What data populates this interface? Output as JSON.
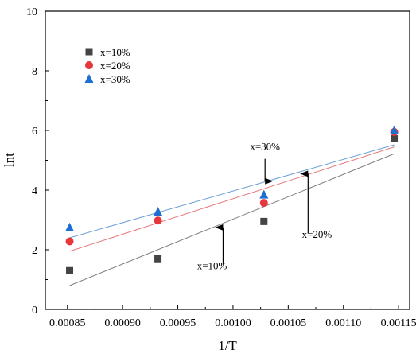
{
  "chart_data": {
    "type": "scatter",
    "xlabel": "1/T",
    "ylabel": "lnt",
    "xlim": [
      0.00083,
      0.00116
    ],
    "ylim": [
      0,
      10
    ],
    "xticks": [
      0.00085,
      0.0009,
      0.00095,
      0.001,
      0.00105,
      0.0011,
      0.00115
    ],
    "xtick_labels": [
      "0.00085",
      "0.00090",
      "0.00095",
      "0.00100",
      "0.00105",
      "0.00110",
      "0.00115"
    ],
    "yticks": [
      0,
      2,
      4,
      6,
      8,
      10
    ],
    "ytick_labels": [
      "0",
      "2",
      "4",
      "6",
      "8",
      "10"
    ],
    "grid": false,
    "legend_position": "top-left",
    "series": [
      {
        "name": "x=10%",
        "marker": "square",
        "color": "#444444",
        "line_color": "#7f7f7f",
        "x": [
          0.000852,
          0.000932,
          0.001028,
          0.001146
        ],
        "y": [
          1.3,
          1.7,
          2.95,
          5.72
        ],
        "fit": [
          [
            0.000852,
            0.8
          ],
          [
            0.001146,
            5.22
          ]
        ]
      },
      {
        "name": "x=20%",
        "marker": "circle",
        "color": "#e8373c",
        "line_color": "#e8777a",
        "x": [
          0.000852,
          0.000932,
          0.001028,
          0.001146
        ],
        "y": [
          2.28,
          2.98,
          3.57,
          5.95
        ],
        "fit": [
          [
            0.000852,
            1.95
          ],
          [
            0.001146,
            5.45
          ]
        ]
      },
      {
        "name": "x=30%",
        "marker": "triangle",
        "color": "#1f6fd1",
        "line_color": "#6b9fd8",
        "x": [
          0.000852,
          0.000932,
          0.001028,
          0.001146
        ],
        "y": [
          2.75,
          3.28,
          3.85,
          6.0
        ],
        "fit": [
          [
            0.000852,
            2.4
          ],
          [
            0.001146,
            5.52
          ]
        ]
      }
    ],
    "annotations": [
      {
        "text": "x=30%",
        "tx": 0.001029,
        "ty": 5.35,
        "ax": 0.001029,
        "ay1": 5.05,
        "ay2": 4.3
      },
      {
        "text": "x=20%",
        "tx": 0.001076,
        "ty": 2.4,
        "ax": 0.001068,
        "ay1": 2.55,
        "ay2": 4.55
      },
      {
        "text": "x=10%",
        "tx": 0.000981,
        "ty": 1.35,
        "ax": 0.000991,
        "ay1": 1.5,
        "ay2": 2.75
      }
    ]
  }
}
